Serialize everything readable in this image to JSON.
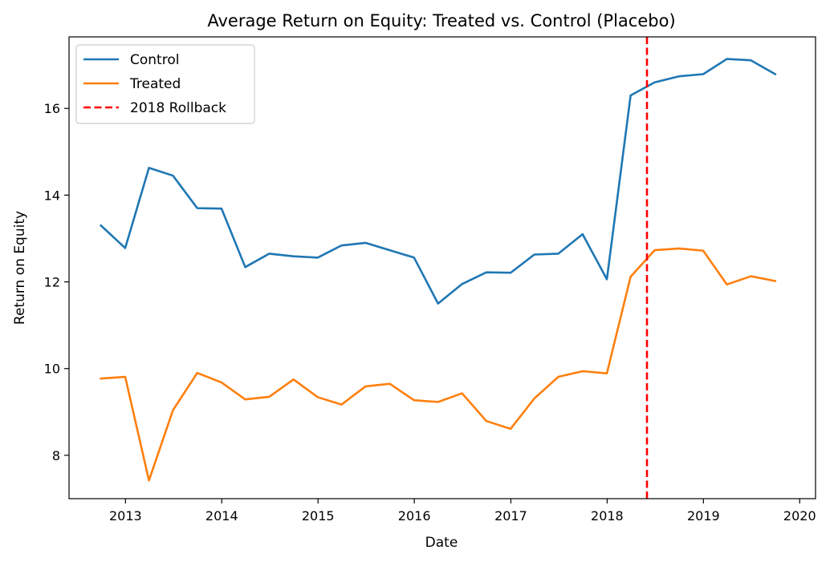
{
  "chart_data": {
    "type": "line",
    "title": "Average Return on Equity: Treated vs. Control (Placebo)",
    "xlabel": "Date",
    "ylabel": "Return on Equity",
    "xlim": [
      "2012-06-01",
      "2020-03-01"
    ],
    "ylim": [
      7,
      17.65
    ],
    "x_ticks": [
      "2013",
      "2014",
      "2015",
      "2016",
      "2017",
      "2018",
      "2019",
      "2020"
    ],
    "y_ticks": [
      "8",
      "10",
      "12",
      "14",
      "16"
    ],
    "grid": false,
    "legend_position": "top-left",
    "x": [
      "2012-09-30",
      "2012-12-31",
      "2013-03-31",
      "2013-06-30",
      "2013-09-30",
      "2013-12-31",
      "2014-03-31",
      "2014-06-30",
      "2014-09-30",
      "2014-12-31",
      "2015-03-31",
      "2015-06-30",
      "2015-09-30",
      "2015-12-31",
      "2016-03-31",
      "2016-06-30",
      "2016-09-30",
      "2016-12-31",
      "2017-03-31",
      "2017-06-30",
      "2017-09-30",
      "2017-12-31",
      "2018-03-31",
      "2018-06-30",
      "2018-09-30",
      "2018-12-31",
      "2019-03-31",
      "2019-06-30",
      "2019-09-30"
    ],
    "series": [
      {
        "name": "Control",
        "color": "#1f77b4",
        "values": [
          13.3,
          12.78,
          14.63,
          14.45,
          13.7,
          13.69,
          12.34,
          12.65,
          12.59,
          12.56,
          12.84,
          12.9,
          12.73,
          12.56,
          11.5,
          11.95,
          12.22,
          12.21,
          12.63,
          12.65,
          13.1,
          12.06,
          16.3,
          16.6,
          16.74,
          16.79,
          17.14,
          17.11,
          16.79
        ]
      },
      {
        "name": "Treated",
        "color": "#ff7f0e",
        "values": [
          9.77,
          9.81,
          7.42,
          9.04,
          9.9,
          9.68,
          9.29,
          9.35,
          9.75,
          9.34,
          9.17,
          9.59,
          9.65,
          9.27,
          9.23,
          9.43,
          8.79,
          8.61,
          9.31,
          9.81,
          9.94,
          9.89,
          12.12,
          12.73,
          12.77,
          12.72,
          11.94,
          12.13,
          12.02
        ]
      }
    ],
    "vlines": [
      {
        "name": "2018 Rollback",
        "x": "2018-06-01",
        "color": "#ff0000",
        "style": "dashed"
      }
    ]
  }
}
